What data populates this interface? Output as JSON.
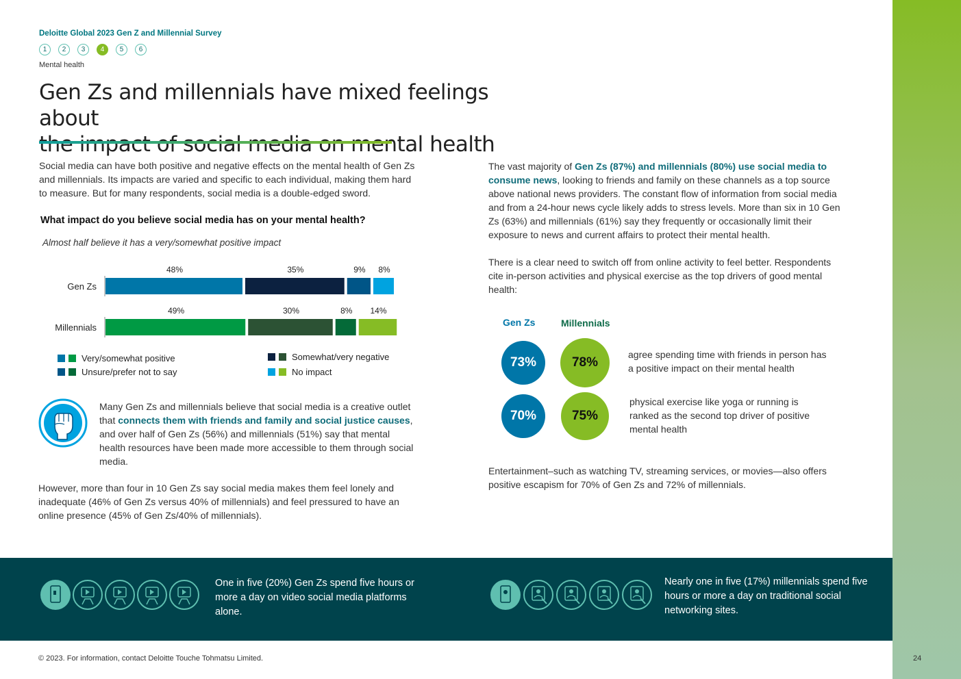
{
  "header": {
    "survey_title": "Deloitte Global 2023 Gen Z and Millennial Survey",
    "steps": [
      "1",
      "2",
      "3",
      "4",
      "5",
      "6"
    ],
    "active_step": "4",
    "section": "Mental health"
  },
  "title": {
    "line1": "Gen Zs and millennials have mixed feelings about",
    "line2": "the impact of social media on mental health"
  },
  "intro": "Social media can have both positive and negative effects on the mental health of Gen Zs and millennials. Its impacts are varied and specific to each individual, making them hard to measure. But for many respondents, social media is a double-edged sword.",
  "chart_data": {
    "type": "bar",
    "stacked": true,
    "orientation": "horizontal",
    "title": "What impact do you believe social media has on your mental health?",
    "subtitle": "Almost half believe it has a very/somewhat positive impact",
    "categories": [
      "Gen Zs",
      "Millennials"
    ],
    "series": [
      {
        "name": "Very/somewhat positive",
        "values": [
          48,
          49
        ],
        "colors": [
          "#0076a8",
          "#009a44"
        ]
      },
      {
        "name": "Somewhat/very negative",
        "values": [
          35,
          30
        ],
        "colors": [
          "#0c2140",
          "#2c5234"
        ]
      },
      {
        "name": "Unsure/prefer not to say",
        "values": [
          9,
          8
        ],
        "colors": [
          "#005587",
          "#046a38"
        ]
      },
      {
        "name": "No impact",
        "values": [
          8,
          14
        ],
        "colors": [
          "#00a3e0",
          "#86bc25"
        ]
      }
    ],
    "labels": [
      [
        "48%",
        "35%",
        "9%",
        "8%"
      ],
      [
        "49%",
        "30%",
        "8%",
        "14%"
      ]
    ],
    "legend": [
      {
        "label": "Very/somewhat positive",
        "c1": "#0076a8",
        "c2": "#009a44"
      },
      {
        "label": "Somewhat/very negative",
        "c1": "#0c2140",
        "c2": "#2c5234"
      },
      {
        "label": "Unsure/prefer not to say",
        "c1": "#005587",
        "c2": "#046a38"
      },
      {
        "label": "No impact",
        "c1": "#00a3e0",
        "c2": "#86bc25"
      }
    ]
  },
  "creative": {
    "p1": "Many Gen Zs and millennials believe that social media is a creative outlet that ",
    "hl": "connects them with friends and family and social justice causes",
    "p2": ", and over half of Gen Zs (56%) and millennials (51%) say that mental health resources have been made more accessible to them through social media."
  },
  "however": "However, more than four in 10 Gen Zs say social media makes them feel lonely and inadequate (46% of Gen Zs versus 40% of millennials) and feel pressured to have an online presence (45% of Gen Zs/40% of millennials).",
  "right": {
    "p1_a": "The vast majority of ",
    "p1_hl": "Gen Zs (87%) and millennials (80%) use social media to consume news",
    "p1_b": ", looking to friends and family on these channels as a top source above national news providers. The constant flow of information from social media and from a 24-hour news cycle likely adds to stress levels. More than six in 10 Gen Zs (63%) and millennials (61%) say they frequently or occasionally limit their exposure to news and current affairs to protect their mental health.",
    "p2": "There is a clear need to switch off from online activity to feel better. Respondents cite in-person activities and physical exercise as the top drivers of good mental health:",
    "stat_head_genz": "Gen Zs",
    "stat_head_mill": "Millennials",
    "stats": [
      {
        "genz": "73%",
        "mill": "78%",
        "text": "agree spending time with friends in person has a positive impact on their mental health"
      },
      {
        "genz": "70%",
        "mill": "75%",
        "text": "physical exercise like yoga or running is ranked as the second top driver of positive mental health"
      }
    ],
    "p3": "Entertainment–such as watching TV, streaming services, or movies—also offers positive escapism for 70% of Gen Zs and 72% of millennials."
  },
  "band": {
    "left_text": "One in five (20%) Gen Zs spend five hours or more a day on video social media platforms alone.",
    "right_text": "Nearly one in five (17%) millennials spend five hours or more a day on traditional social networking sites."
  },
  "footer": {
    "copyright": "© 2023. For information, contact Deloitte Touche Tohmatsu Limited.",
    "page": "24"
  },
  "colors": {
    "teal": "#0f6c7a",
    "genz_circle": "#0076a8",
    "mill_circle": "#86bc25",
    "band": "#00434c"
  }
}
